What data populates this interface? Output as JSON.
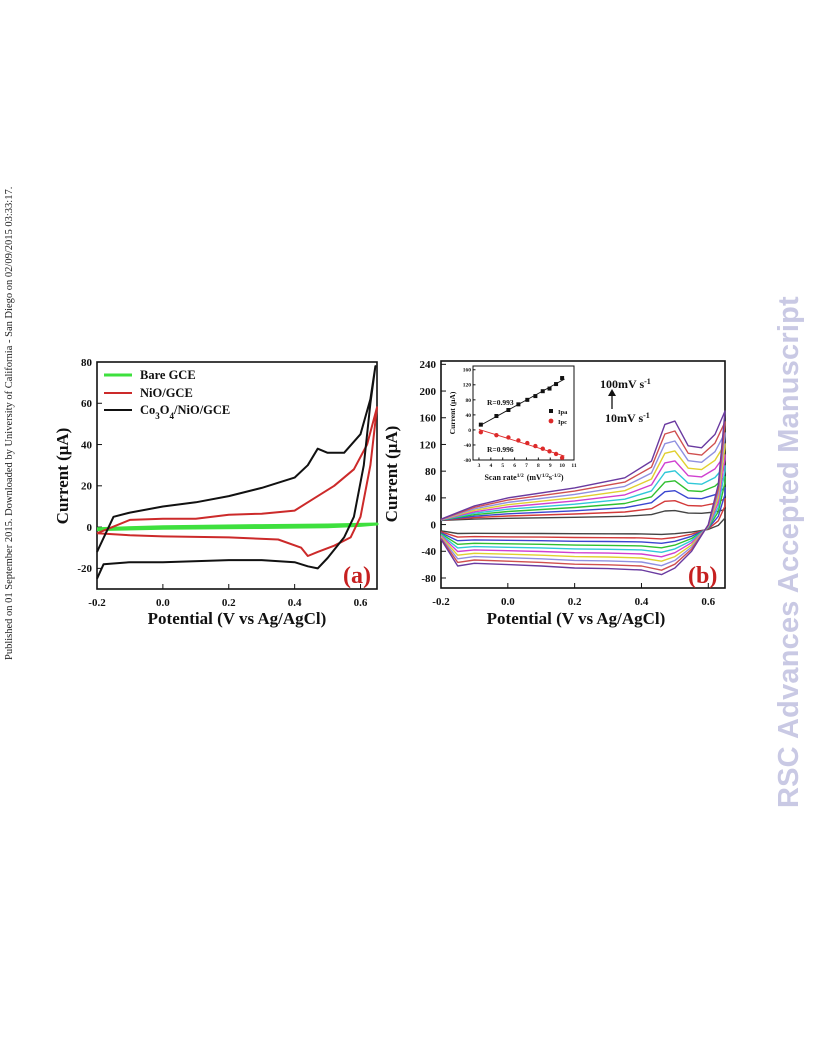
{
  "page": {
    "side_note": "Published on 01 September 2015. Downloaded by University of California - San Diego on 02/09/2015 03:33:17.",
    "watermark": "RSC Advances Accepted Manuscript"
  },
  "chart_data": [
    {
      "type": "line",
      "panel_label": "(a)",
      "xlabel": "Potential (V vs Ag/AgCl)",
      "ylabel": "Current (μA)",
      "xlim": [
        -0.2,
        0.65
      ],
      "ylim": [
        -30,
        80
      ],
      "xticks": [
        "-0.2",
        "0.0",
        "0.2",
        "0.4",
        "0.6"
      ],
      "yticks": [
        "-20",
        "0",
        "20",
        "40",
        "60",
        "80"
      ],
      "legend_position": "top-left",
      "series": [
        {
          "name": "Bare GCE",
          "color": "#3ee03e",
          "forward": [
            [
              -0.2,
              -1.2
            ],
            [
              0.0,
              -0.6
            ],
            [
              0.3,
              -0.2
            ],
            [
              0.5,
              0.2
            ],
            [
              0.6,
              0.8
            ],
            [
              0.65,
              1.5
            ]
          ],
          "reverse": [
            [
              0.65,
              1.5
            ],
            [
              0.5,
              1.0
            ],
            [
              0.3,
              0.7
            ],
            [
              0.0,
              0.2
            ],
            [
              -0.2,
              -0.8
            ]
          ]
        },
        {
          "name": "NiO/GCE",
          "color": "#cc2a2a",
          "forward": [
            [
              -0.2,
              -3
            ],
            [
              -0.1,
              -4
            ],
            [
              0.0,
              -4.5
            ],
            [
              0.2,
              -5
            ],
            [
              0.35,
              -6
            ],
            [
              0.42,
              -10
            ],
            [
              0.44,
              -14
            ],
            [
              0.47,
              -12
            ],
            [
              0.52,
              -9
            ],
            [
              0.57,
              -5
            ],
            [
              0.6,
              5
            ],
            [
              0.63,
              30
            ],
            [
              0.65,
              58
            ]
          ],
          "reverse": [
            [
              0.65,
              58
            ],
            [
              0.62,
              40
            ],
            [
              0.58,
              28
            ],
            [
              0.52,
              20
            ],
            [
              0.46,
              14
            ],
            [
              0.4,
              8
            ],
            [
              0.3,
              6.5
            ],
            [
              0.2,
              6
            ],
            [
              0.1,
              4
            ],
            [
              0.0,
              4
            ],
            [
              -0.1,
              3.5
            ],
            [
              -0.2,
              -3
            ]
          ]
        },
        {
          "name": "Co3O4/NiO/GCE",
          "color": "#111111",
          "forward": [
            [
              -0.2,
              -25
            ],
            [
              -0.18,
              -18
            ],
            [
              -0.1,
              -17
            ],
            [
              0.0,
              -17
            ],
            [
              0.2,
              -16
            ],
            [
              0.3,
              -16
            ],
            [
              0.4,
              -17
            ],
            [
              0.44,
              -19
            ],
            [
              0.47,
              -20
            ],
            [
              0.5,
              -15
            ],
            [
              0.55,
              -5
            ],
            [
              0.58,
              5
            ],
            [
              0.61,
              30
            ],
            [
              0.63,
              60
            ],
            [
              0.645,
              78
            ]
          ],
          "reverse": [
            [
              0.645,
              78
            ],
            [
              0.63,
              62
            ],
            [
              0.6,
              45
            ],
            [
              0.55,
              36
            ],
            [
              0.5,
              36
            ],
            [
              0.47,
              38
            ],
            [
              0.44,
              30
            ],
            [
              0.4,
              24
            ],
            [
              0.3,
              19
            ],
            [
              0.2,
              15
            ],
            [
              0.1,
              12
            ],
            [
              0.0,
              10
            ],
            [
              -0.1,
              7
            ],
            [
              -0.15,
              5
            ],
            [
              -0.2,
              -12
            ]
          ]
        }
      ]
    },
    {
      "type": "line",
      "panel_label": "(b)",
      "xlabel": "Potential (V vs Ag/AgCl)",
      "ylabel": "Current (μA)",
      "xlim": [
        -0.2,
        0.65
      ],
      "ylim": [
        -95,
        245
      ],
      "xticks": [
        "-0.2",
        "0.0",
        "0.2",
        "0.4",
        "0.6"
      ],
      "yticks": [
        "-80",
        "-40",
        "0",
        "40",
        "80",
        "120",
        "160",
        "200",
        "240"
      ],
      "annotations": {
        "top": "100mV s",
        "top_sup": "-1",
        "bottom": "10mV s",
        "bottom_sup": "-1"
      },
      "scan_scale": [
        0.1,
        0.2,
        0.3,
        0.4,
        0.5,
        0.6,
        0.7,
        0.8,
        0.9,
        1.0
      ],
      "series_colors": [
        "#444444",
        "#d33a3a",
        "#3a46d0",
        "#30c030",
        "#30c8d8",
        "#d040d0",
        "#e0d030",
        "#9090e0",
        "#d05050",
        "#6a3aa0"
      ],
      "envelope": {
        "forward": [
          [
            -0.2,
            -22
          ],
          [
            -0.15,
            -62
          ],
          [
            -0.1,
            -58
          ],
          [
            0.0,
            -60
          ],
          [
            0.1,
            -62
          ],
          [
            0.2,
            -65
          ],
          [
            0.3,
            -66
          ],
          [
            0.4,
            -68
          ],
          [
            0.46,
            -75
          ],
          [
            0.5,
            -65
          ],
          [
            0.55,
            -40
          ],
          [
            0.6,
            0
          ],
          [
            0.63,
            60
          ],
          [
            0.65,
            170
          ]
        ],
        "reverse": [
          [
            0.65,
            170
          ],
          [
            0.62,
            135
          ],
          [
            0.58,
            115
          ],
          [
            0.54,
            118
          ],
          [
            0.5,
            155
          ],
          [
            0.47,
            150
          ],
          [
            0.43,
            95
          ],
          [
            0.35,
            70
          ],
          [
            0.2,
            55
          ],
          [
            0.0,
            40
          ],
          [
            -0.1,
            28
          ],
          [
            -0.2,
            8
          ]
        ]
      },
      "inset": {
        "type": "scatter",
        "xlabel": "Scan rate",
        "xlabel_sup": "1/2",
        "xlabel_units": "(mV",
        "xlabel_units_sup": "1/2",
        "xlabel_units_tail": "s",
        "xlabel_units_tail_sup": "-1/2",
        "xlabel_close": ")",
        "ylabel": "Current (μA)",
        "xlim": [
          2.5,
          11
        ],
        "ylim": [
          -80,
          170
        ],
        "xticks": [
          "3",
          "4",
          "5",
          "6",
          "7",
          "8",
          "9",
          "10",
          "11"
        ],
        "yticks": [
          "-80",
          "-40",
          "0",
          "40",
          "80",
          "120",
          "160"
        ],
        "legend": [
          "Ipa",
          "Ipc"
        ],
        "r_values": [
          "R=0.993",
          "R=0.996"
        ],
        "series": [
          {
            "name": "Ipa",
            "color": "#111111",
            "x": [
              3.16,
              4.47,
              5.48,
              6.32,
              7.07,
              7.75,
              8.37,
              8.94,
              9.49,
              10.0
            ],
            "y": [
              14,
              37,
              53,
              68,
              80,
              90,
              103,
              110,
              122,
              138
            ]
          },
          {
            "name": "Ipc",
            "color": "#dd2a2a",
            "x": [
              3.16,
              4.47,
              5.48,
              6.32,
              7.07,
              7.75,
              8.37,
              8.94,
              9.49,
              10.0
            ],
            "y": [
              -6,
              -14,
              -20,
              -28,
              -35,
              -43,
              -50,
              -57,
              -64,
              -74
            ]
          }
        ]
      }
    }
  ]
}
